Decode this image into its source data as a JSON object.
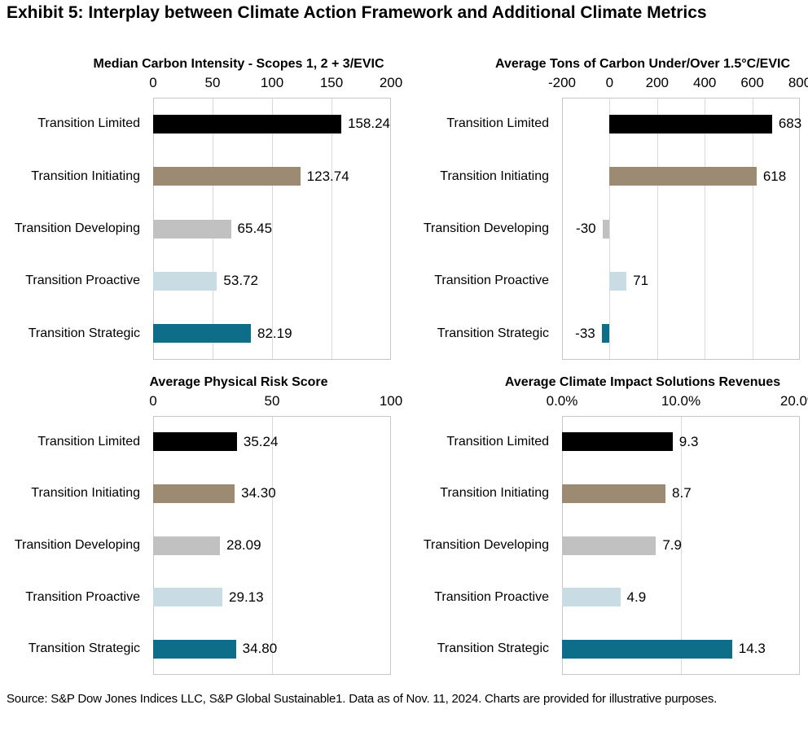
{
  "page_title": "Exhibit 5: Interplay between Climate Action Framework and Additional Climate Metrics",
  "source_note": "Source: S&P Dow Jones Indices LLC, S&P Global Sustainable1. Data as of Nov. 11, 2024. Charts are provided for illustrative purposes.",
  "colors": {
    "bar_colors": [
      "#000000",
      "#9c8b72",
      "#c1c1c1",
      "#c9dce3",
      "#0e6e8a"
    ],
    "gridline": "#d9d9d9",
    "plot_border": "#c8c8c8",
    "text": "#000000"
  },
  "categories": [
    "Transition Limited",
    "Transition Initiating",
    "Transition Developing",
    "Transition Proactive",
    "Transition Strategic"
  ],
  "chart_data": [
    {
      "type": "bar",
      "orientation": "horizontal",
      "title": "Median Carbon Intensity - Scopes 1, 2 + 3/EVIC",
      "categories": [
        "Transition Limited",
        "Transition Initiating",
        "Transition Developing",
        "Transition Proactive",
        "Transition Strategic"
      ],
      "values": [
        158.24,
        123.74,
        65.45,
        53.72,
        82.19
      ],
      "value_labels": [
        "158.24",
        "123.74",
        "65.45",
        "53.72",
        "82.19"
      ],
      "xlim": [
        0,
        200
      ],
      "ticks": [
        0,
        50,
        100,
        150,
        200
      ],
      "tick_labels": [
        "0",
        "50",
        "100",
        "150",
        "200"
      ],
      "grid": true,
      "legend": "none"
    },
    {
      "type": "bar",
      "orientation": "horizontal",
      "title": "Average Tons of Carbon Under/Over 1.5°C/EVIC",
      "categories": [
        "Transition Limited",
        "Transition Initiating",
        "Transition Developing",
        "Transition Proactive",
        "Transition Strategic"
      ],
      "values": [
        683,
        618,
        -30,
        71,
        -33
      ],
      "value_labels": [
        "683",
        "618",
        "-30",
        "71",
        "-33"
      ],
      "xlim": [
        -200,
        800
      ],
      "ticks": [
        -200,
        0,
        200,
        400,
        600,
        800
      ],
      "tick_labels": [
        "-200",
        "0",
        "200",
        "400",
        "600",
        "800"
      ],
      "grid": true,
      "legend": "none"
    },
    {
      "type": "bar",
      "orientation": "horizontal",
      "title": "Average Physical Risk Score",
      "categories": [
        "Transition Limited",
        "Transition Initiating",
        "Transition Developing",
        "Transition Proactive",
        "Transition Strategic"
      ],
      "values": [
        35.24,
        34.3,
        28.09,
        29.13,
        34.8
      ],
      "value_labels": [
        "35.24",
        "34.30",
        "28.09",
        "29.13",
        "34.80"
      ],
      "xlim": [
        0,
        100
      ],
      "ticks": [
        0,
        50,
        100
      ],
      "tick_labels": [
        "0",
        "50",
        "100"
      ],
      "grid": true,
      "legend": "none"
    },
    {
      "type": "bar",
      "orientation": "horizontal",
      "title": "Average Climate Impact Solutions Revenues",
      "categories": [
        "Transition Limited",
        "Transition Initiating",
        "Transition Developing",
        "Transition Proactive",
        "Transition Strategic"
      ],
      "values": [
        9.3,
        8.7,
        7.9,
        4.9,
        14.3
      ],
      "value_labels": [
        "9.3",
        "8.7",
        "7.9",
        "4.9",
        "14.3"
      ],
      "xlim": [
        0,
        20
      ],
      "ticks": [
        0,
        10,
        20
      ],
      "tick_labels": [
        "0.0%",
        "10.0%",
        "20.0%"
      ],
      "grid": true,
      "legend": "none"
    }
  ]
}
